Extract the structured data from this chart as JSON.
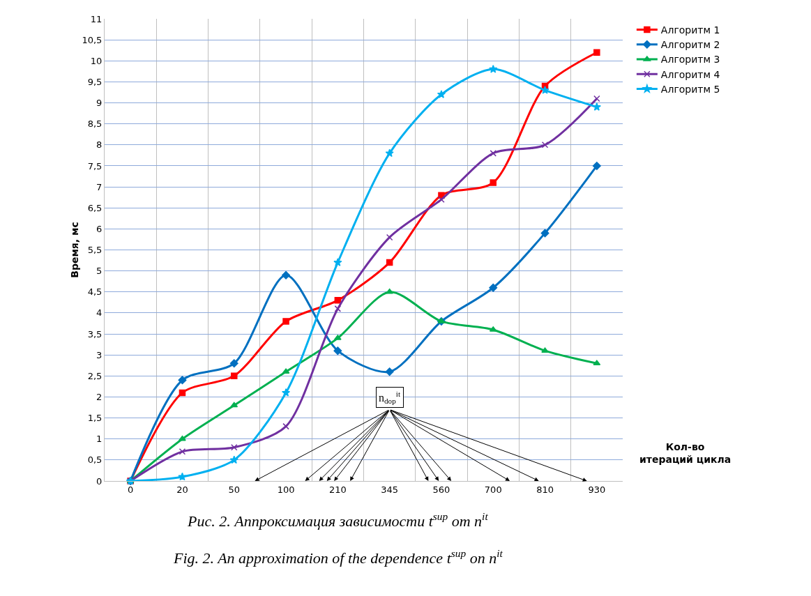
{
  "chart_data": {
    "type": "line",
    "ylabel": "Время, мс",
    "xlabel": "Кол-во итераций цикла",
    "categories": [
      "0",
      "20",
      "50",
      "100",
      "210",
      "345",
      "560",
      "700",
      "810",
      "930"
    ],
    "series": [
      {
        "name": "Алгоритм 1",
        "color": "#ff0000",
        "marker": "square",
        "values": [
          0,
          2.1,
          2.5,
          3.8,
          4.3,
          5.2,
          6.8,
          7.1,
          9.4,
          10.2
        ]
      },
      {
        "name": "Алгоритм 2",
        "color": "#0070c0",
        "marker": "diamond",
        "values": [
          0,
          2.4,
          2.8,
          4.9,
          3.1,
          2.6,
          3.8,
          4.6,
          5.9,
          7.5
        ]
      },
      {
        "name": "Алгоритм 3",
        "color": "#00b050",
        "marker": "triangle",
        "values": [
          0,
          1.0,
          1.8,
          2.6,
          3.4,
          4.5,
          3.8,
          3.6,
          3.1,
          2.8
        ]
      },
      {
        "name": "Алгоритм 4",
        "color": "#7030a0",
        "marker": "cross",
        "values": [
          0,
          0.7,
          0.8,
          1.3,
          4.1,
          5.8,
          6.7,
          7.8,
          8.0,
          9.1
        ]
      },
      {
        "name": "Алгоритм 5",
        "color": "#00b0f0",
        "marker": "star",
        "values": [
          0,
          0.1,
          0.5,
          2.1,
          5.2,
          7.8,
          9.2,
          9.8,
          9.3,
          8.9
        ]
      }
    ],
    "ylim": [
      0,
      11
    ],
    "yticks": [
      0,
      {
        "value": 0.5,
        "label": "0,5"
      },
      1,
      {
        "value": 1.5,
        "label": "1,5"
      },
      2,
      {
        "value": 2.5,
        "label": "2,5"
      },
      3,
      {
        "value": 3.5,
        "label": "3,5"
      },
      4,
      {
        "value": 4.5,
        "label": "4,5"
      },
      5,
      {
        "value": 5.5,
        "label": "5,5"
      },
      6,
      {
        "value": 6.5,
        "label": "6,5"
      },
      7,
      {
        "value": 7.5,
        "label": "7,5"
      },
      8,
      {
        "value": 8.5,
        "label": "8,5"
      },
      9,
      {
        "value": 9.5,
        "label": "9,5"
      },
      10,
      {
        "value": 10.5,
        "label": "10,5"
      },
      11
    ],
    "grid": true,
    "legend": "top right",
    "line_style": "solid",
    "annotations": [
      "n$_{dop}$$^{it}$",
      "Рис. 2. Аппроксимация зависимости t$^{sup}$ от n$^{it}$",
      "Fig. 2. An approximation of the dependence t$^{sup}$ on n$^{it}$"
    ]
  }
}
